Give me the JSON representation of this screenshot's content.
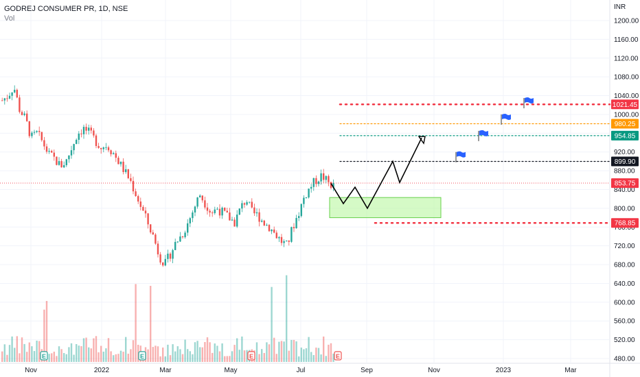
{
  "header": {
    "symbol_line": "GODREJ CONSUMER PR, 1D, NSE",
    "volume_label": "Vol"
  },
  "currency": "INR",
  "colors": {
    "up": "#26a69a",
    "down": "#ef5350",
    "red_level": "#f23645",
    "orange_level": "#ff9800",
    "teal_level": "#089981",
    "black_level": "#131722",
    "zone_fill": "#b9f6a0",
    "zone_stroke": "#66d04a",
    "flag": "#2962ff",
    "grid": "#f0f3fa",
    "text": "#131722"
  },
  "chart_data": {
    "type": "candlestick",
    "ylim": [
      470,
      1240
    ],
    "y_ticks": [
      "1200.00",
      "1160.00",
      "1120.00",
      "1080.00",
      "1040.00",
      "1000.00",
      "960.00",
      "920.00",
      "880.00",
      "840.00",
      "800.00",
      "760.00",
      "720.00",
      "680.00",
      "640.00",
      "600.00",
      "560.00",
      "520.00",
      "480.00"
    ],
    "x_labels": [
      "Nov",
      "2022",
      "Mar",
      "May",
      "Jul",
      "Sep",
      "Nov",
      "2023",
      "Mar"
    ],
    "price_labels": [
      {
        "value": 1021.45,
        "text": "1021.45",
        "color": "#f23645"
      },
      {
        "value": 980.25,
        "text": "980.25",
        "color": "#ff9800"
      },
      {
        "value": 954.85,
        "text": "954.85",
        "color": "#089981"
      },
      {
        "value": 899.9,
        "text": "899.90",
        "color": "#131722"
      },
      {
        "value": 853.75,
        "text": "853.75",
        "color": "#f23645"
      },
      {
        "value": 768.85,
        "text": "768.85",
        "color": "#f23645"
      }
    ],
    "trend_path_prices": [
      853,
      810,
      845,
      800,
      900,
      855,
      950
    ],
    "demand_zone_prices": [
      780,
      823
    ],
    "flag_prices": [
      920,
      965,
      1000,
      1035
    ],
    "price_path": [
      1030,
      1040,
      1060,
      1010,
      990,
      950,
      960,
      940,
      915,
      905,
      890,
      900,
      930,
      960,
      970,
      960,
      945,
      930,
      935,
      920,
      900,
      880,
      860,
      830,
      800,
      770,
      740,
      700,
      680,
      705,
      730,
      745,
      770,
      800,
      830,
      810,
      790,
      800,
      790,
      780,
      770,
      800,
      820,
      790,
      785,
      770,
      760,
      745,
      730,
      720,
      760,
      790,
      825,
      845,
      860,
      870,
      855,
      848
    ],
    "volume_markers": [
      "E",
      "E",
      "E",
      "E"
    ]
  }
}
